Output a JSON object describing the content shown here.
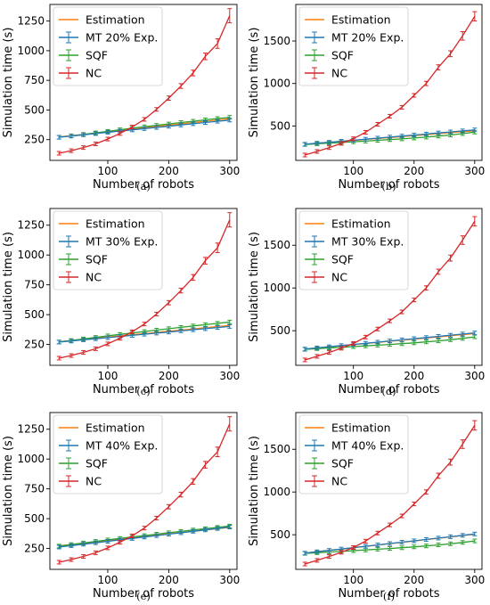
{
  "chart_data": [
    {
      "caption": "(a)",
      "type": "line",
      "xlabel": "Number of robots",
      "ylabel": "Simulation time (s)",
      "xlim": [
        5,
        312
      ],
      "ylim": [
        75,
        1390
      ],
      "xticks": [
        100,
        200,
        300
      ],
      "yticks": [
        250,
        500,
        750,
        1000,
        1250
      ],
      "legend_position": "top-left",
      "x": [
        20,
        40,
        60,
        80,
        100,
        120,
        140,
        160,
        180,
        200,
        220,
        240,
        260,
        280,
        300
      ],
      "series": [
        {
          "name": "Estimation",
          "color": "#ff7f0e",
          "values": [
            273,
            283,
            294,
            305,
            316,
            327,
            338,
            350,
            361,
            372,
            383,
            394,
            405,
            416,
            427
          ]
        },
        {
          "name": "MT 20% Exp.",
          "color": "#1f77b4",
          "values": [
            270,
            280,
            291,
            301,
            312,
            322,
            332,
            343,
            353,
            363,
            374,
            384,
            394,
            405,
            415
          ]
        },
        {
          "name": "SQF",
          "color": "#2ca02c",
          "values": [
            270,
            282,
            294,
            307,
            320,
            333,
            346,
            358,
            370,
            382,
            394,
            405,
            417,
            428,
            438
          ]
        },
        {
          "name": "NC",
          "color": "#d62728",
          "values": [
            135,
            157,
            183,
            214,
            255,
            302,
            356,
            421,
            505,
            600,
            702,
            812,
            952,
            1060,
            1295
          ]
        }
      ],
      "errors": {
        "NC": [
          0,
          0,
          0,
          0,
          0,
          0,
          0,
          0,
          0,
          18,
          20,
          24,
          28,
          40,
          60
        ]
      }
    },
    {
      "caption": "(b)",
      "type": "line",
      "xlabel": "Number of robots",
      "ylabel": "Simulation time (s)",
      "xlim": [
        5,
        312
      ],
      "ylim": [
        95,
        1930
      ],
      "xticks": [
        100,
        200,
        300
      ],
      "yticks": [
        500,
        1000,
        1500
      ],
      "legend_position": "top-left",
      "x": [
        20,
        40,
        60,
        80,
        100,
        120,
        140,
        160,
        180,
        200,
        220,
        240,
        260,
        280,
        300
      ],
      "series": [
        {
          "name": "Estimation",
          "color": "#ff7f0e",
          "values": [
            285,
            296,
            307,
            318,
            329,
            341,
            352,
            364,
            375,
            387,
            398,
            410,
            421,
            433,
            444
          ]
        },
        {
          "name": "MT 20% Exp.",
          "color": "#1f77b4",
          "values": [
            285,
            297,
            308,
            320,
            332,
            345,
            357,
            369,
            381,
            393,
            405,
            418,
            430,
            442,
            454
          ]
        },
        {
          "name": "SQF",
          "color": "#2ca02c",
          "values": [
            282,
            290,
            298,
            306,
            314,
            322,
            331,
            339,
            348,
            358,
            369,
            381,
            394,
            410,
            428
          ]
        },
        {
          "name": "NC",
          "color": "#d62728",
          "values": [
            158,
            200,
            245,
            295,
            350,
            425,
            520,
            615,
            720,
            860,
            1000,
            1190,
            1350,
            1560,
            1790
          ]
        }
      ],
      "errors": {
        "NC": [
          0,
          0,
          0,
          0,
          0,
          0,
          0,
          0,
          0,
          20,
          25,
          30,
          35,
          50,
          55
        ]
      }
    },
    {
      "caption": "(c)",
      "type": "line",
      "xlabel": "Number of robots",
      "ylabel": "Simulation time (s)",
      "xlim": [
        5,
        312
      ],
      "ylim": [
        75,
        1390
      ],
      "xticks": [
        100,
        200,
        300
      ],
      "yticks": [
        250,
        500,
        750,
        1000,
        1250
      ],
      "legend_position": "top-left",
      "x": [
        20,
        40,
        60,
        80,
        100,
        120,
        140,
        160,
        180,
        200,
        220,
        240,
        260,
        280,
        300
      ],
      "series": [
        {
          "name": "Estimation",
          "color": "#ff7f0e",
          "values": [
            273,
            283,
            292,
            302,
            312,
            322,
            331,
            341,
            351,
            361,
            370,
            380,
            390,
            400,
            410
          ]
        },
        {
          "name": "MT 30% Exp.",
          "color": "#1f77b4",
          "values": [
            270,
            279,
            289,
            298,
            307,
            317,
            326,
            336,
            345,
            354,
            364,
            373,
            382,
            392,
            401
          ]
        },
        {
          "name": "SQF",
          "color": "#2ca02c",
          "values": [
            270,
            283,
            296,
            309,
            322,
            334,
            346,
            358,
            370,
            382,
            393,
            405,
            416,
            427,
            438
          ]
        },
        {
          "name": "NC",
          "color": "#d62728",
          "values": [
            135,
            157,
            183,
            214,
            255,
            302,
            356,
            421,
            505,
            600,
            702,
            812,
            952,
            1060,
            1295
          ]
        }
      ],
      "errors": {
        "NC": [
          0,
          0,
          0,
          0,
          0,
          0,
          0,
          0,
          0,
          18,
          20,
          24,
          28,
          40,
          60
        ]
      }
    },
    {
      "caption": "(d)",
      "type": "line",
      "xlabel": "Number of robots",
      "ylabel": "Simulation time (s)",
      "xlim": [
        5,
        312
      ],
      "ylim": [
        95,
        1930
      ],
      "xticks": [
        100,
        200,
        300
      ],
      "yticks": [
        500,
        1000,
        1500
      ],
      "legend_position": "top-left",
      "x": [
        20,
        40,
        60,
        80,
        100,
        120,
        140,
        160,
        180,
        200,
        220,
        240,
        260,
        280,
        300
      ],
      "series": [
        {
          "name": "Estimation",
          "color": "#ff7f0e",
          "values": [
            285,
            298,
            311,
            324,
            337,
            350,
            363,
            376,
            389,
            402,
            415,
            428,
            441,
            454,
            467
          ]
        },
        {
          "name": "MT 30% Exp.",
          "color": "#1f77b4",
          "values": [
            285,
            299,
            312,
            326,
            339,
            353,
            366,
            380,
            393,
            407,
            420,
            434,
            447,
            461,
            474
          ]
        },
        {
          "name": "SQF",
          "color": "#2ca02c",
          "values": [
            282,
            290,
            298,
            306,
            314,
            322,
            331,
            339,
            348,
            358,
            369,
            381,
            394,
            410,
            428
          ]
        },
        {
          "name": "NC",
          "color": "#d62728",
          "values": [
            158,
            200,
            245,
            295,
            350,
            425,
            520,
            615,
            720,
            860,
            1000,
            1190,
            1350,
            1560,
            1780
          ]
        }
      ],
      "errors": {
        "NC": [
          0,
          0,
          0,
          0,
          0,
          0,
          0,
          0,
          0,
          20,
          25,
          30,
          35,
          50,
          55
        ]
      }
    },
    {
      "caption": "(e)",
      "type": "line",
      "xlabel": "Number of robots",
      "ylabel": "Simulation time (s)",
      "xlim": [
        5,
        312
      ],
      "ylim": [
        75,
        1390
      ],
      "xticks": [
        100,
        200,
        300
      ],
      "yticks": [
        250,
        500,
        750,
        1000,
        1250
      ],
      "legend_position": "top-left",
      "x": [
        20,
        40,
        60,
        80,
        100,
        120,
        140,
        160,
        180,
        200,
        220,
        240,
        260,
        280,
        300
      ],
      "series": [
        {
          "name": "Estimation",
          "color": "#ff7f0e",
          "values": [
            273,
            283,
            294,
            305,
            316,
            327,
            338,
            350,
            361,
            372,
            383,
            394,
            405,
            416,
            427
          ]
        },
        {
          "name": "MT 40% Exp.",
          "color": "#1f77b4",
          "values": [
            262,
            274,
            286,
            298,
            310,
            322,
            334,
            346,
            358,
            370,
            382,
            394,
            406,
            418,
            430
          ]
        },
        {
          "name": "SQF",
          "color": "#2ca02c",
          "values": [
            270,
            283,
            296,
            309,
            322,
            334,
            346,
            358,
            370,
            382,
            393,
            405,
            416,
            427,
            438
          ]
        },
        {
          "name": "NC",
          "color": "#d62728",
          "values": [
            135,
            157,
            183,
            214,
            255,
            302,
            356,
            421,
            505,
            600,
            702,
            812,
            952,
            1060,
            1295
          ]
        }
      ],
      "errors": {
        "NC": [
          0,
          0,
          0,
          0,
          0,
          0,
          0,
          0,
          0,
          18,
          20,
          24,
          28,
          40,
          60
        ]
      }
    },
    {
      "caption": "(f)",
      "type": "line",
      "xlabel": "Number of robots",
      "ylabel": "Simulation time (s)",
      "xlim": [
        5,
        312
      ],
      "ylim": [
        95,
        1930
      ],
      "xticks": [
        100,
        200,
        300
      ],
      "yticks": [
        500,
        1000,
        1500
      ],
      "legend_position": "top-left",
      "x": [
        20,
        40,
        60,
        80,
        100,
        120,
        140,
        160,
        180,
        200,
        220,
        240,
        260,
        280,
        300
      ],
      "series": [
        {
          "name": "Estimation",
          "color": "#ff7f0e",
          "values": [
            285,
            301,
            317,
            332,
            348,
            364,
            380,
            396,
            411,
            427,
            443,
            459,
            475,
            490,
            506
          ]
        },
        {
          "name": "MT 40% Exp.",
          "color": "#1f77b4",
          "values": [
            285,
            301,
            317,
            333,
            349,
            365,
            381,
            397,
            413,
            429,
            445,
            461,
            477,
            493,
            509
          ]
        },
        {
          "name": "SQF",
          "color": "#2ca02c",
          "values": [
            282,
            290,
            298,
            306,
            314,
            322,
            331,
            339,
            348,
            358,
            369,
            381,
            394,
            410,
            428
          ]
        },
        {
          "name": "NC",
          "color": "#d62728",
          "values": [
            158,
            200,
            245,
            295,
            350,
            425,
            520,
            615,
            720,
            860,
            1000,
            1190,
            1350,
            1560,
            1780
          ]
        }
      ],
      "errors": {
        "NC": [
          0,
          0,
          0,
          0,
          0,
          0,
          0,
          0,
          0,
          20,
          25,
          30,
          35,
          50,
          55
        ]
      }
    }
  ]
}
